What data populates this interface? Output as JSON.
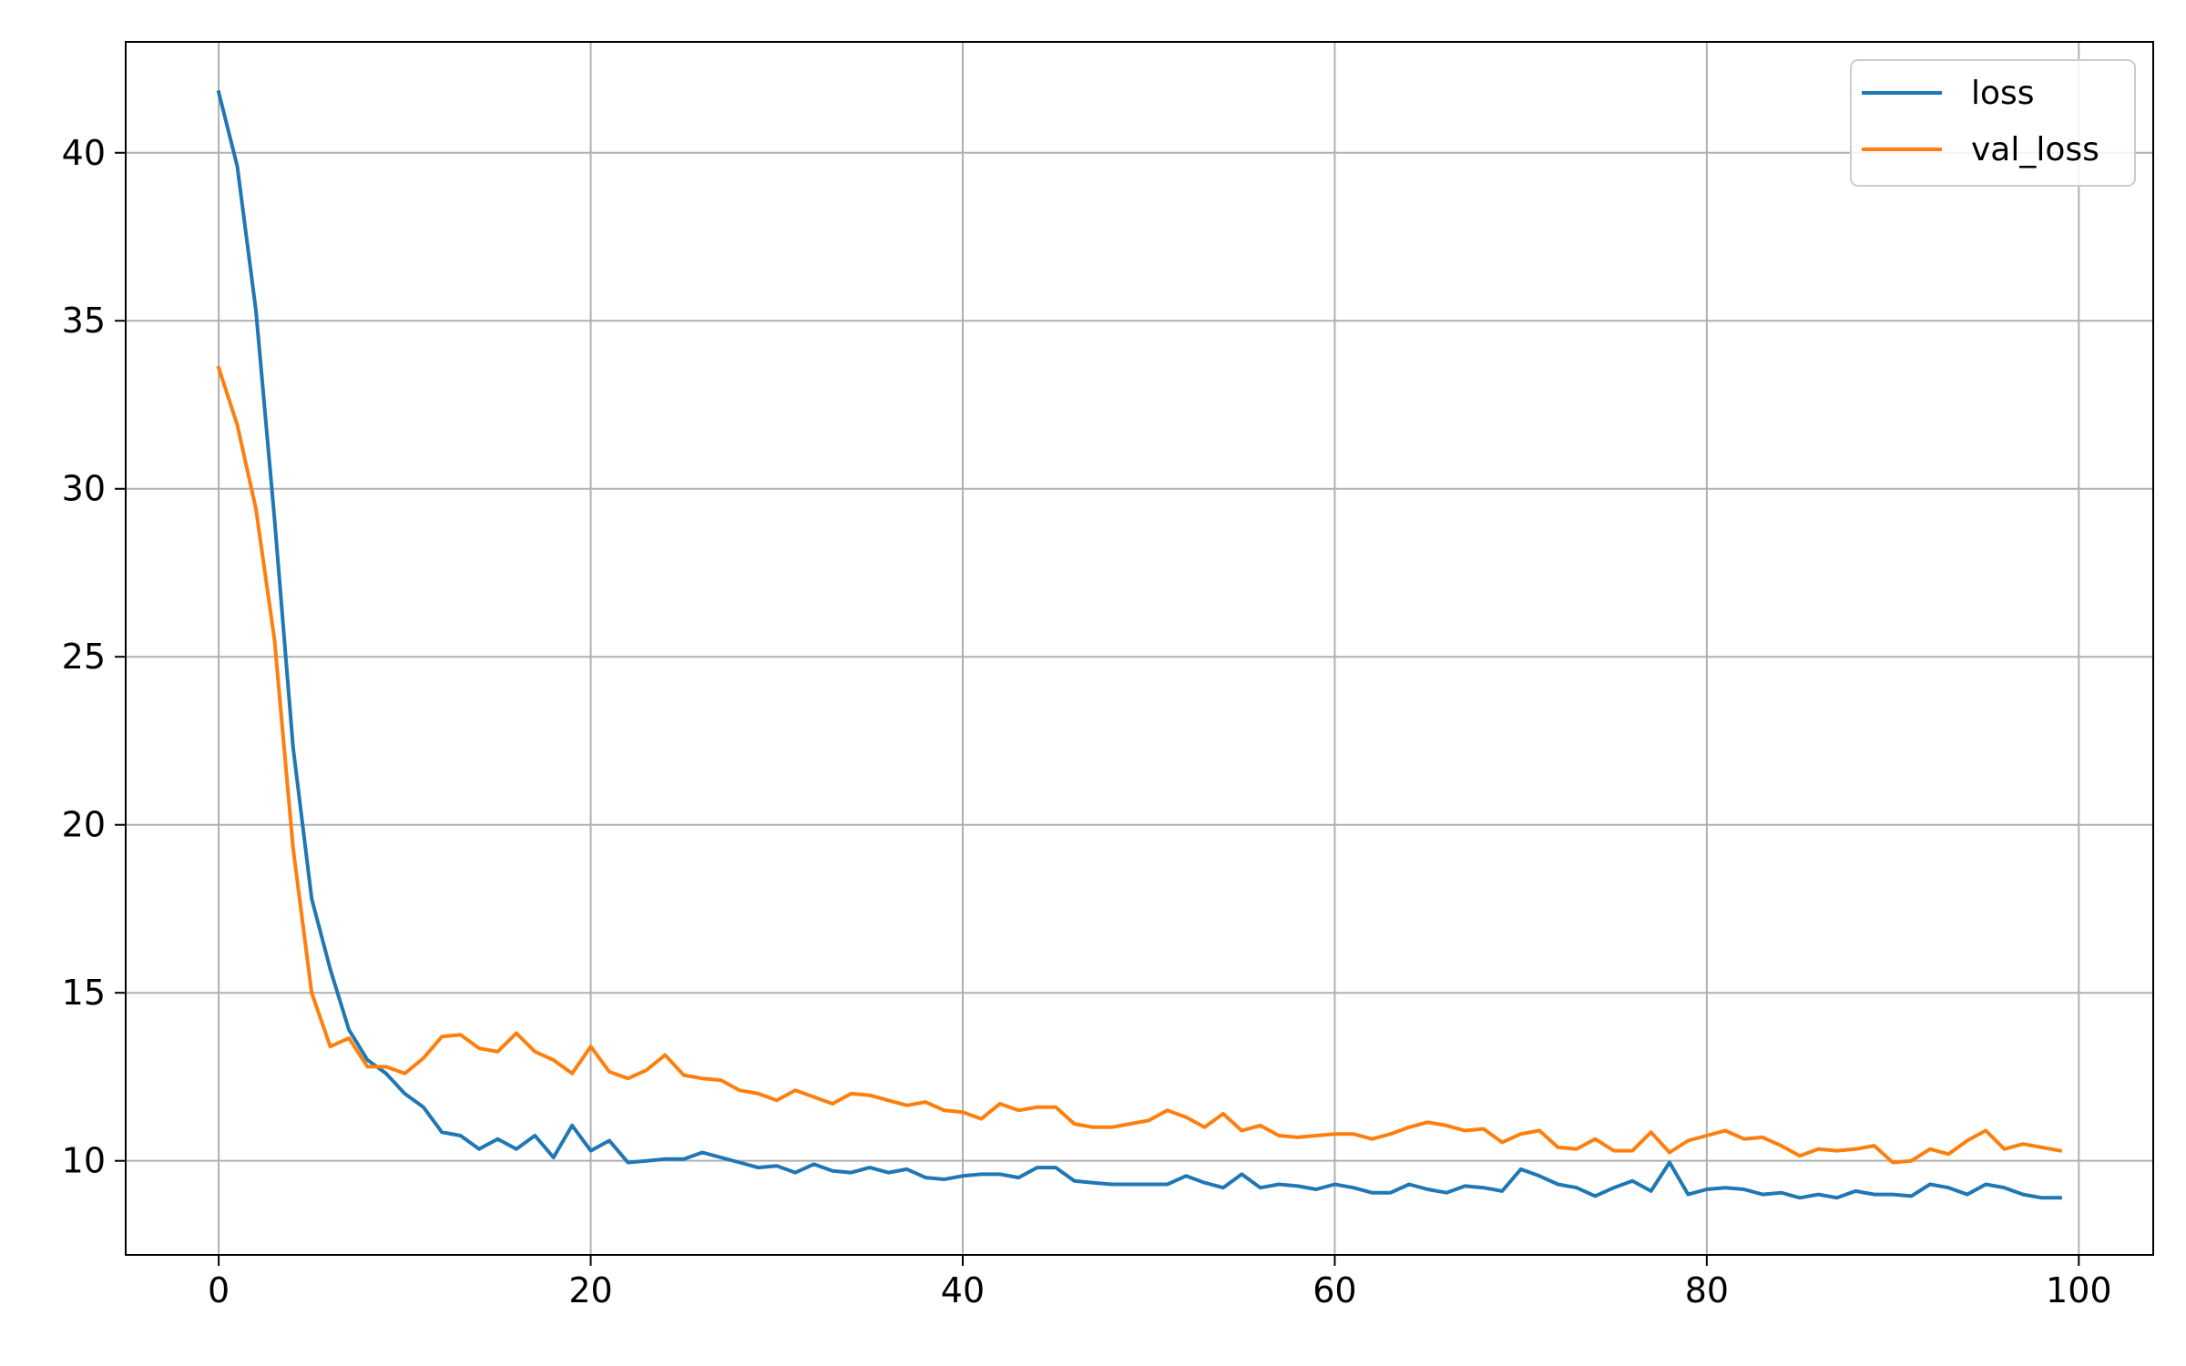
{
  "chart_data": {
    "type": "line",
    "title": "",
    "xlabel": "",
    "ylabel": "",
    "xlim": [
      -5,
      104
    ],
    "ylim": [
      7.2,
      43.3
    ],
    "xticks": [
      0,
      20,
      40,
      60,
      80,
      100
    ],
    "yticks": [
      10,
      15,
      20,
      25,
      30,
      35,
      40
    ],
    "grid": true,
    "legend_position": "top-right",
    "series": [
      {
        "name": "loss",
        "color": "#1f77b4",
        "x": [
          0,
          1,
          2,
          3,
          4,
          5,
          6,
          7,
          8,
          9,
          10,
          11,
          12,
          13,
          14,
          15,
          16,
          17,
          18,
          19,
          20,
          21,
          22,
          23,
          24,
          25,
          26,
          27,
          28,
          29,
          30,
          31,
          32,
          33,
          34,
          35,
          36,
          37,
          38,
          39,
          40,
          41,
          42,
          43,
          44,
          45,
          46,
          47,
          48,
          49,
          50,
          51,
          52,
          53,
          54,
          55,
          56,
          57,
          58,
          59,
          60,
          61,
          62,
          63,
          64,
          65,
          66,
          67,
          68,
          69,
          70,
          71,
          72,
          73,
          74,
          75,
          76,
          77,
          78,
          79,
          80,
          81,
          82,
          83,
          84,
          85,
          86,
          87,
          88,
          89,
          90,
          91,
          92,
          93,
          94,
          95,
          96,
          97,
          98,
          99
        ],
        "values": [
          41.8,
          39.6,
          35.3,
          29.1,
          22.3,
          17.8,
          15.7,
          13.9,
          13.0,
          12.6,
          12.0,
          11.6,
          10.85,
          10.75,
          10.35,
          10.65,
          10.35,
          10.75,
          10.1,
          11.05,
          10.3,
          10.6,
          9.95,
          10.0,
          10.05,
          10.05,
          10.25,
          10.1,
          9.95,
          9.8,
          9.85,
          9.65,
          9.9,
          9.7,
          9.65,
          9.8,
          9.65,
          9.75,
          9.5,
          9.45,
          9.55,
          9.6,
          9.6,
          9.5,
          9.8,
          9.8,
          9.4,
          9.35,
          9.3,
          9.3,
          9.3,
          9.3,
          9.55,
          9.35,
          9.2,
          9.6,
          9.2,
          9.3,
          9.25,
          9.15,
          9.3,
          9.2,
          9.05,
          9.05,
          9.3,
          9.15,
          9.05,
          9.25,
          9.2,
          9.1,
          9.75,
          9.55,
          9.3,
          9.2,
          8.95,
          9.2,
          9.4,
          9.1,
          9.95,
          9.0,
          9.15,
          9.2,
          9.15,
          9.0,
          9.05,
          8.9,
          9.0,
          8.9,
          9.1,
          9.0,
          9.0,
          8.95,
          9.3,
          9.2,
          9.0,
          9.3,
          9.2,
          9.0,
          8.9,
          8.9
        ]
      },
      {
        "name": "val_loss",
        "color": "#ff7f0e",
        "x": [
          0,
          1,
          2,
          3,
          4,
          5,
          6,
          7,
          8,
          9,
          10,
          11,
          12,
          13,
          14,
          15,
          16,
          17,
          18,
          19,
          20,
          21,
          22,
          23,
          24,
          25,
          26,
          27,
          28,
          29,
          30,
          31,
          32,
          33,
          34,
          35,
          36,
          37,
          38,
          39,
          40,
          41,
          42,
          43,
          44,
          45,
          46,
          47,
          48,
          49,
          50,
          51,
          52,
          53,
          54,
          55,
          56,
          57,
          58,
          59,
          60,
          61,
          62,
          63,
          64,
          65,
          66,
          67,
          68,
          69,
          70,
          71,
          72,
          73,
          74,
          75,
          76,
          77,
          78,
          79,
          80,
          81,
          82,
          83,
          84,
          85,
          86,
          87,
          88,
          89,
          90,
          91,
          92,
          93,
          94,
          95,
          96,
          97,
          98,
          99
        ],
        "values": [
          33.6,
          31.9,
          29.4,
          25.5,
          19.3,
          15.0,
          13.4,
          13.65,
          12.8,
          12.8,
          12.6,
          13.05,
          13.7,
          13.75,
          13.35,
          13.25,
          13.8,
          13.25,
          13.0,
          12.6,
          13.4,
          12.65,
          12.45,
          12.7,
          13.15,
          12.55,
          12.45,
          12.4,
          12.1,
          12.0,
          11.8,
          12.1,
          11.9,
          11.7,
          12.0,
          11.95,
          11.8,
          11.65,
          11.75,
          11.5,
          11.45,
          11.25,
          11.7,
          11.5,
          11.6,
          11.6,
          11.1,
          11.0,
          11.0,
          11.1,
          11.2,
          11.5,
          11.3,
          11.0,
          11.4,
          10.9,
          11.05,
          10.75,
          10.7,
          10.75,
          10.8,
          10.8,
          10.65,
          10.8,
          11.0,
          11.15,
          11.05,
          10.9,
          10.95,
          10.55,
          10.8,
          10.9,
          10.4,
          10.35,
          10.65,
          10.3,
          10.3,
          10.85,
          10.25,
          10.6,
          10.75,
          10.9,
          10.65,
          10.7,
          10.45,
          10.15,
          10.35,
          10.3,
          10.35,
          10.45,
          9.95,
          10.0,
          10.35,
          10.2,
          10.6,
          10.9,
          10.35,
          10.5,
          10.4,
          10.3
        ]
      }
    ]
  },
  "legend": {
    "items": [
      {
        "label": "loss",
        "color": "#1f77b4"
      },
      {
        "label": "val_loss",
        "color": "#ff7f0e"
      }
    ]
  }
}
